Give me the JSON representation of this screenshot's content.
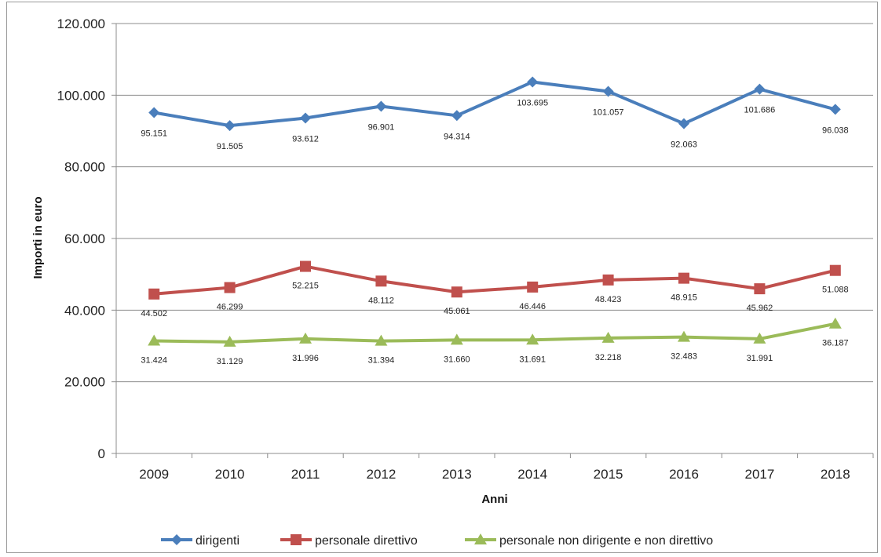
{
  "chart_data": {
    "type": "line",
    "title": "",
    "xlabel": "Anni",
    "ylabel": "Importi in euro",
    "categories": [
      "2009",
      "2010",
      "2011",
      "2012",
      "2013",
      "2014",
      "2015",
      "2016",
      "2017",
      "2018"
    ],
    "ylim": [
      0,
      120000
    ],
    "yticks": [
      0,
      20000,
      40000,
      60000,
      80000,
      100000,
      120000
    ],
    "ytick_labels": [
      "0",
      "20.000",
      "40.000",
      "60.000",
      "80.000",
      "100.000",
      "120.000"
    ],
    "grid": true,
    "legend_position": "bottom",
    "series": [
      {
        "name": "dirigenti",
        "color": "#4a7ebb",
        "marker": "diamond",
        "values": [
          95151,
          91505,
          93612,
          96901,
          94314,
          103695,
          101057,
          92063,
          101686,
          96038
        ],
        "labels": [
          "95.151",
          "91.505",
          "93.612",
          "96.901",
          "94.314",
          "103.695",
          "101.057",
          "92.063",
          "101.686",
          "96.038"
        ]
      },
      {
        "name": "personale direttivo",
        "color": "#c0504d",
        "marker": "square",
        "values": [
          44502,
          46299,
          52215,
          48112,
          45061,
          46446,
          48423,
          48915,
          45962,
          51088
        ],
        "labels": [
          "44.502",
          "46.299",
          "52.215",
          "48.112",
          "45.061",
          "46.446",
          "48.423",
          "48.915",
          "45.962",
          "51.088"
        ]
      },
      {
        "name": "personale non dirigente e non direttivo",
        "color": "#9bbb59",
        "marker": "triangle",
        "values": [
          31424,
          31129,
          31996,
          31394,
          31660,
          31691,
          32218,
          32483,
          31991,
          36187
        ],
        "labels": [
          "31.424",
          "31.129",
          "31.996",
          "31.394",
          "31.660",
          "31.691",
          "32.218",
          "32.483",
          "31.991",
          "36.187"
        ]
      }
    ]
  }
}
